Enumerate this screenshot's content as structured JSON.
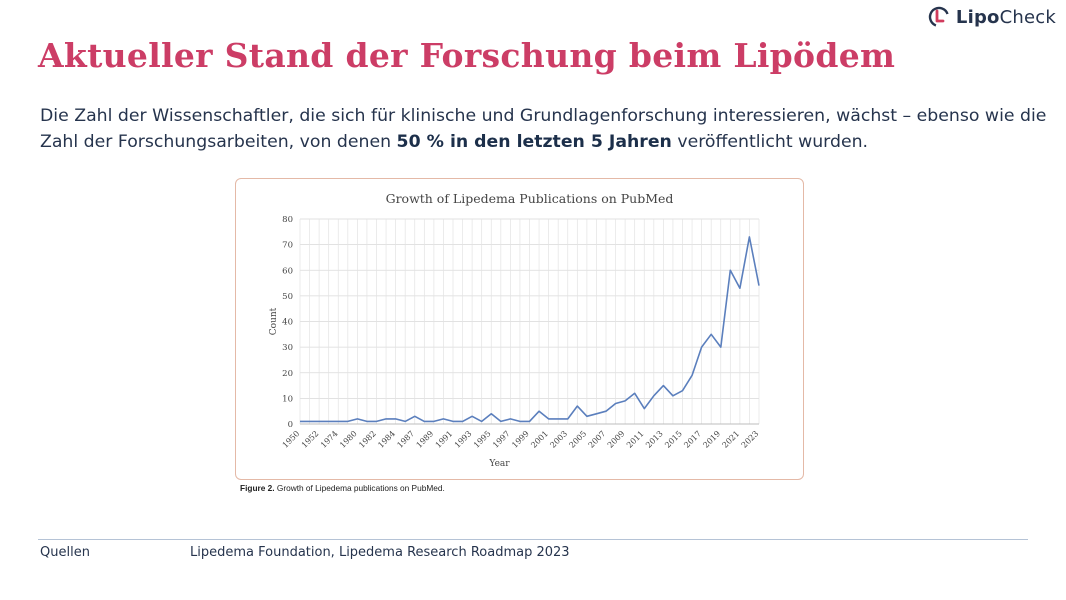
{
  "brand": {
    "name_part1": "Lipo",
    "name_part2": "Check",
    "logo_icon": "lipocheck-logo-icon",
    "logo_colors": {
      "red": "#d13c5d",
      "navy": "#26344d"
    }
  },
  "slide": {
    "title": "Aktueller Stand der Forschung beim Lipödem",
    "intro_before": "Die Zahl der Wissenschaftler, die sich für klinische und Grundlagenforschung interessieren, wächst – ebenso wie die Zahl der Forschungsarbeiten, von denen ",
    "intro_bold": "50 % in den letzten 5 Jahren",
    "intro_after": " veröffentlicht wurden."
  },
  "figure": {
    "caption_label": "Figure 2.",
    "caption_text": " Growth of Lipedema publications on PubMed."
  },
  "footer": {
    "label": "Quellen",
    "text": "Lipedema Foundation, Lipedema Research Roadmap 2023"
  },
  "colors": {
    "title": "#cc3d66",
    "text": "#26344d",
    "line": "#5b7fbd",
    "frame": "#e4b9a7"
  },
  "chart_data": {
    "type": "line",
    "title": "Growth of Lipedema Publications on PubMed",
    "xlabel": "Year",
    "ylabel": "Count",
    "ylim": [
      0,
      80
    ],
    "yticks": [
      0,
      10,
      20,
      30,
      40,
      50,
      60,
      70,
      80
    ],
    "grid": true,
    "x": [
      "1950",
      "1951",
      "1952",
      "1953",
      "1974",
      "1975",
      "1980",
      "1981",
      "1982",
      "1983",
      "1984",
      "1985",
      "1987",
      "1988",
      "1989",
      "1990",
      "1991",
      "1992",
      "1993",
      "1994",
      "1995",
      "1996",
      "1997",
      "1998",
      "1999",
      "2000",
      "2001",
      "2002",
      "2003",
      "2004",
      "2005",
      "2006",
      "2007",
      "2008",
      "2009",
      "2010",
      "2011",
      "2012",
      "2013",
      "2014",
      "2015",
      "2016",
      "2017",
      "2018",
      "2019",
      "2020",
      "2021",
      "2022",
      "2023"
    ],
    "x_tick_labels": [
      "1950",
      "1952",
      "1974",
      "1980",
      "1982",
      "1984",
      "1987",
      "1989",
      "1991",
      "1993",
      "1995",
      "1997",
      "1999",
      "2001",
      "2003",
      "2005",
      "2007",
      "2009",
      "2011",
      "2013",
      "2015",
      "2017",
      "2019",
      "2021",
      "2023"
    ],
    "series": [
      {
        "values": [
          1,
          1,
          1,
          1,
          1,
          1,
          2,
          1,
          1,
          2,
          2,
          1,
          3,
          1,
          1,
          2,
          1,
          1,
          3,
          1,
          4,
          1,
          2,
          1,
          1,
          5,
          2,
          2,
          2,
          7,
          3,
          4,
          5,
          8,
          9,
          12,
          6,
          11,
          15,
          11,
          13,
          19,
          30,
          35,
          30,
          60,
          53,
          73,
          54
        ]
      }
    ]
  }
}
